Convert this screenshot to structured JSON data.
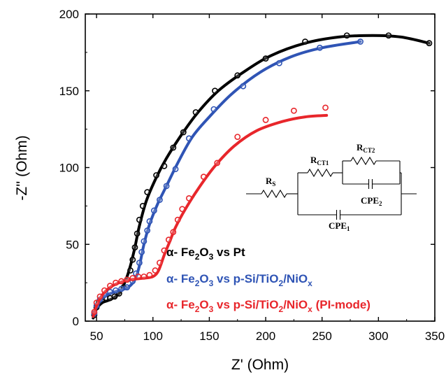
{
  "chart_data": {
    "type": "scatter",
    "title": "",
    "xlabel": "Z' (Ohm)",
    "ylabel": "-Z'' (Ohm)",
    "xlim": [
      40,
      350
    ],
    "ylim": [
      0,
      200
    ],
    "xticks": [
      "50",
      "100",
      "150",
      "200",
      "250",
      "300",
      "350"
    ],
    "yticks": [
      "0",
      "50",
      "100",
      "150",
      "200"
    ],
    "grid": false,
    "legend_position": "bottom-right",
    "series": [
      {
        "legend_parts": [
          "α- Fe",
          "2",
          "O",
          "3",
          " vs Pt"
        ],
        "color": "#000000",
        "markers": [
          [
            48,
            4
          ],
          [
            50,
            9
          ],
          [
            52,
            12
          ],
          [
            55,
            14
          ],
          [
            58,
            15
          ],
          [
            62,
            15
          ],
          [
            66,
            16
          ],
          [
            70,
            18
          ],
          [
            74,
            22
          ],
          [
            77,
            27
          ],
          [
            80,
            33
          ],
          [
            82,
            40
          ],
          [
            84,
            48
          ],
          [
            86,
            57
          ],
          [
            88,
            66
          ],
          [
            91,
            75
          ],
          [
            95,
            84
          ],
          [
            103,
            95
          ],
          [
            110,
            101
          ],
          [
            118,
            113
          ],
          [
            127,
            123
          ],
          [
            138,
            136
          ],
          [
            155,
            150
          ],
          [
            175,
            160
          ],
          [
            200,
            171
          ],
          [
            235,
            182
          ],
          [
            272,
            186
          ],
          [
            309,
            186
          ],
          [
            345,
            181
          ]
        ],
        "fit": [
          [
            47,
            2
          ],
          [
            50,
            8
          ],
          [
            55,
            12
          ],
          [
            62,
            14
          ],
          [
            70,
            18
          ],
          [
            76,
            27
          ],
          [
            80,
            36
          ],
          [
            84,
            48
          ],
          [
            88,
            62
          ],
          [
            94,
            78
          ],
          [
            102,
            92
          ],
          [
            112,
            106
          ],
          [
            125,
            121
          ],
          [
            140,
            136
          ],
          [
            158,
            150
          ],
          [
            180,
            162
          ],
          [
            205,
            173
          ],
          [
            235,
            181
          ],
          [
            265,
            185
          ],
          [
            295,
            186
          ],
          [
            320,
            185
          ],
          [
            345,
            181
          ]
        ]
      },
      {
        "legend_parts": [
          "α- Fe",
          "2",
          "O",
          "3",
          " vs p-Si/TiO",
          "2",
          "/NiO",
          "x"
        ],
        "color": "#2f54b5",
        "markers": [
          [
            48,
            5
          ],
          [
            50,
            10
          ],
          [
            53,
            14
          ],
          [
            57,
            17
          ],
          [
            62,
            19
          ],
          [
            67,
            20
          ],
          [
            72,
            21
          ],
          [
            77,
            22
          ],
          [
            82,
            26
          ],
          [
            85,
            31
          ],
          [
            88,
            38
          ],
          [
            90,
            45
          ],
          [
            92,
            52
          ],
          [
            95,
            59
          ],
          [
            97,
            65
          ],
          [
            101,
            72
          ],
          [
            106,
            79
          ],
          [
            112,
            88
          ],
          [
            120,
            99
          ],
          [
            132,
            119
          ],
          [
            154,
            138
          ],
          [
            180,
            153
          ],
          [
            212,
            168
          ],
          [
            248,
            178
          ],
          [
            284,
            182
          ]
        ],
        "fit": [
          [
            47,
            3
          ],
          [
            50,
            9
          ],
          [
            55,
            15
          ],
          [
            62,
            18
          ],
          [
            70,
            20
          ],
          [
            78,
            22
          ],
          [
            84,
            27
          ],
          [
            88,
            36
          ],
          [
            92,
            50
          ],
          [
            97,
            63
          ],
          [
            104,
            76
          ],
          [
            112,
            88
          ],
          [
            122,
            103
          ],
          [
            135,
            120
          ],
          [
            150,
            133
          ],
          [
            170,
            148
          ],
          [
            195,
            162
          ],
          [
            222,
            172
          ],
          [
            250,
            178
          ],
          [
            284,
            182
          ]
        ]
      },
      {
        "legend_parts": [
          "α- Fe",
          "2",
          "O",
          "3",
          " vs p-Si/TiO",
          "2",
          "/NiO",
          "x",
          " (PI-mode)"
        ],
        "color": "#e8262b",
        "markers": [
          [
            48,
            6
          ],
          [
            50,
            12
          ],
          [
            53,
            16
          ],
          [
            57,
            20
          ],
          [
            62,
            23
          ],
          [
            67,
            25
          ],
          [
            72,
            26
          ],
          [
            77,
            27
          ],
          [
            82,
            28
          ],
          [
            87,
            29
          ],
          [
            92,
            29
          ],
          [
            97,
            30
          ],
          [
            102,
            33
          ],
          [
            106,
            38
          ],
          [
            110,
            46
          ],
          [
            114,
            53
          ],
          [
            118,
            58
          ],
          [
            122,
            66
          ],
          [
            126,
            73
          ],
          [
            132,
            80
          ],
          [
            145,
            94
          ],
          [
            157,
            103
          ],
          [
            175,
            120
          ],
          [
            200,
            131
          ],
          [
            225,
            137
          ],
          [
            253,
            139
          ]
        ],
        "fit": [
          [
            47,
            3
          ],
          [
            50,
            10
          ],
          [
            55,
            17
          ],
          [
            62,
            22
          ],
          [
            70,
            25
          ],
          [
            80,
            27
          ],
          [
            92,
            28
          ],
          [
            100,
            29
          ],
          [
            105,
            33
          ],
          [
            110,
            43
          ],
          [
            115,
            52
          ],
          [
            120,
            61
          ],
          [
            128,
            72
          ],
          [
            140,
            86
          ],
          [
            155,
            101
          ],
          [
            172,
            114
          ],
          [
            192,
            124
          ],
          [
            215,
            130
          ],
          [
            235,
            133
          ],
          [
            254,
            134
          ]
        ]
      }
    ],
    "inset_circuit": {
      "rs": "R",
      "rs_sub": "S",
      "rct1": "R",
      "rct1_sub": "CT1",
      "rct2": "R",
      "rct2_sub": "CT2",
      "cpe1": "CPE",
      "cpe1_sub": "1",
      "cpe2": "CPE",
      "cpe2_sub": "2"
    }
  }
}
